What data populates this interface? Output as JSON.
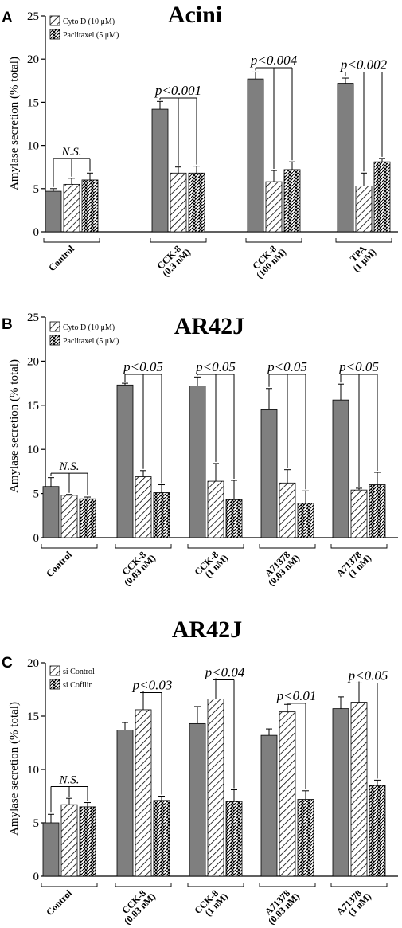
{
  "figure": {
    "patterns": {
      "solid": "#7f7f7f",
      "diag": "diagonal-hatch",
      "wave": "zigzag-hatch"
    }
  },
  "chart_data": [
    {
      "type": "bar",
      "panel": "A",
      "title": "Acini",
      "ylabel": "Amylase secretion (% total)",
      "ylim": [
        0,
        25
      ],
      "yticks": [
        0,
        5,
        10,
        15,
        20,
        25
      ],
      "groups": [
        {
          "line1": "Control",
          "line2": ""
        },
        {
          "line1": "CCK-8",
          "line2": "(0.3 nM)"
        },
        {
          "line1": "CCK-8",
          "line2": "(100 nM)"
        },
        {
          "line1": "TPA",
          "line2": "(1 μM)"
        }
      ],
      "series": [
        {
          "pattern": "solid",
          "values": [
            4.7,
            14.2,
            17.7,
            17.2
          ],
          "errors": [
            0.3,
            0.9,
            0.8,
            0.6
          ]
        },
        {
          "name": "Cyto D (10 μM)",
          "pattern": "diag",
          "values": [
            5.5,
            6.8,
            5.8,
            5.3
          ],
          "errors": [
            0.7,
            0.7,
            1.3,
            1.5
          ]
        },
        {
          "name": "Paclitaxel (5 μM)",
          "pattern": "wave",
          "values": [
            6.0,
            6.8,
            7.2,
            8.1
          ],
          "errors": [
            0.8,
            0.8,
            0.9,
            0.4
          ]
        }
      ],
      "annotations": [
        {
          "text": "N.S.",
          "group": 0,
          "from": 0,
          "to": [
            1,
            2
          ],
          "level": 8.5,
          "italic": true
        },
        {
          "text": "p<0.001",
          "group": 1,
          "from": 0,
          "to": [
            1,
            2
          ],
          "level": 15.5
        },
        {
          "text": "p<0.004",
          "group": 2,
          "from": 0,
          "to": [
            1,
            2
          ],
          "level": 19.0
        },
        {
          "text": "p<0.002",
          "group": 3,
          "from": 0,
          "to": [
            1,
            2
          ],
          "level": 18.5
        }
      ]
    },
    {
      "type": "bar",
      "panel": "B",
      "title": "AR42J",
      "ylabel": "Amylase secretion (% total)",
      "ylim": [
        0,
        25
      ],
      "yticks": [
        0,
        5,
        10,
        15,
        20,
        25
      ],
      "groups": [
        {
          "line1": "Control",
          "line2": ""
        },
        {
          "line1": "CCK-8",
          "line2": "(0.03 nM)"
        },
        {
          "line1": "CCK-8",
          "line2": "(1 nM)"
        },
        {
          "line1": "A71378",
          "line2": "(0.03 nM)"
        },
        {
          "line1": "A71378",
          "line2": "(1 nM)"
        }
      ],
      "series": [
        {
          "pattern": "solid",
          "values": [
            5.8,
            17.3,
            17.2,
            14.5,
            15.6
          ],
          "errors": [
            1.0,
            0.2,
            1.0,
            2.4,
            1.8
          ]
        },
        {
          "name": "Cyto D (10 μM)",
          "pattern": "diag",
          "values": [
            4.8,
            6.9,
            6.4,
            6.2,
            5.4
          ],
          "errors": [
            0.1,
            0.7,
            2.0,
            1.5,
            0.2
          ]
        },
        {
          "name": "Paclitaxel (5 μM)",
          "pattern": "wave",
          "values": [
            4.4,
            5.1,
            4.3,
            3.9,
            6.0
          ],
          "errors": [
            0.2,
            0.9,
            2.2,
            1.4,
            1.4
          ]
        }
      ],
      "annotations": [
        {
          "text": "N.S.",
          "group": 0,
          "from": 0,
          "to": [
            1,
            2
          ],
          "level": 7.3,
          "italic": true
        },
        {
          "text": "p<0.05",
          "group": 1,
          "from": 0,
          "to": [
            1,
            2
          ],
          "level": 18.5
        },
        {
          "text": "p<0.05",
          "group": 2,
          "from": 0,
          "to": [
            1,
            2
          ],
          "level": 18.5
        },
        {
          "text": "p<0.05",
          "group": 3,
          "from": 0,
          "to": [
            1,
            2
          ],
          "level": 18.5
        },
        {
          "text": "p<0.05",
          "group": 4,
          "from": 0,
          "to": [
            1,
            2
          ],
          "level": 18.5
        }
      ]
    },
    {
      "type": "bar",
      "panel": "C",
      "title": "AR42J",
      "ylabel": "Amylase secretion (% total)",
      "ylim": [
        0,
        20
      ],
      "yticks": [
        0,
        5,
        10,
        15,
        20
      ],
      "groups": [
        {
          "line1": "Control",
          "line2": ""
        },
        {
          "line1": "CCK-8",
          "line2": "(0.03 nM)"
        },
        {
          "line1": "CCK-8",
          "line2": "(1 nM)"
        },
        {
          "line1": "A71378",
          "line2": "(0.03 nM)"
        },
        {
          "line1": "A71378",
          "line2": "(1 nM)"
        }
      ],
      "series": [
        {
          "pattern": "solid",
          "values": [
            5.0,
            13.7,
            14.3,
            13.2,
            15.7
          ],
          "errors": [
            0.8,
            0.7,
            1.6,
            0.6,
            1.1
          ]
        },
        {
          "name": "si Control",
          "pattern": "diag",
          "values": [
            6.7,
            15.6,
            16.6,
            15.4,
            16.3
          ],
          "errors": [
            0.6,
            1.6,
            1.8,
            0.7,
            1.8
          ]
        },
        {
          "name": "si Cofilin",
          "pattern": "wave",
          "values": [
            6.5,
            7.1,
            7.0,
            7.2,
            8.5
          ],
          "errors": [
            0.4,
            0.4,
            1.1,
            0.8,
            0.5
          ]
        }
      ],
      "annotations": [
        {
          "text": "N.S.",
          "group": 0,
          "from": 0,
          "to": [
            1,
            2
          ],
          "level": 8.4,
          "italic": true
        },
        {
          "text": "p<0.03",
          "group": 1,
          "from": 1,
          "to": [
            2
          ],
          "level": 17.2
        },
        {
          "text": "p<0.04",
          "group": 2,
          "from": 1,
          "to": [
            2
          ],
          "level": 18.4
        },
        {
          "text": "p<0.01",
          "group": 3,
          "from": 1,
          "to": [
            2
          ],
          "level": 16.2
        },
        {
          "text": "p<0.05",
          "group": 4,
          "from": 1,
          "to": [
            2
          ],
          "level": 18.1
        }
      ]
    }
  ]
}
